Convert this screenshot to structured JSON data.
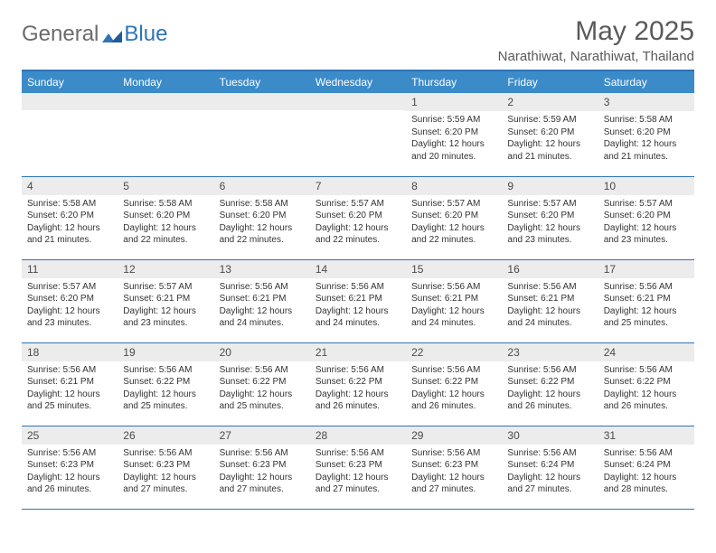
{
  "brand": {
    "part1": "General",
    "part2": "Blue"
  },
  "title": "May 2025",
  "location": "Narathiwat, Narathiwat, Thailand",
  "colors": {
    "header_bg": "#3b8bc9",
    "header_border": "#2e74b5",
    "daynum_bg": "#ececec",
    "text": "#333333",
    "title_text": "#5a5a5a"
  },
  "weekdays": [
    "Sunday",
    "Monday",
    "Tuesday",
    "Wednesday",
    "Thursday",
    "Friday",
    "Saturday"
  ],
  "weeks": [
    [
      {
        "n": "",
        "t": ""
      },
      {
        "n": "",
        "t": ""
      },
      {
        "n": "",
        "t": ""
      },
      {
        "n": "",
        "t": ""
      },
      {
        "n": "1",
        "t": "Sunrise: 5:59 AM\nSunset: 6:20 PM\nDaylight: 12 hours and 20 minutes."
      },
      {
        "n": "2",
        "t": "Sunrise: 5:59 AM\nSunset: 6:20 PM\nDaylight: 12 hours and 21 minutes."
      },
      {
        "n": "3",
        "t": "Sunrise: 5:58 AM\nSunset: 6:20 PM\nDaylight: 12 hours and 21 minutes."
      }
    ],
    [
      {
        "n": "4",
        "t": "Sunrise: 5:58 AM\nSunset: 6:20 PM\nDaylight: 12 hours and 21 minutes."
      },
      {
        "n": "5",
        "t": "Sunrise: 5:58 AM\nSunset: 6:20 PM\nDaylight: 12 hours and 22 minutes."
      },
      {
        "n": "6",
        "t": "Sunrise: 5:58 AM\nSunset: 6:20 PM\nDaylight: 12 hours and 22 minutes."
      },
      {
        "n": "7",
        "t": "Sunrise: 5:57 AM\nSunset: 6:20 PM\nDaylight: 12 hours and 22 minutes."
      },
      {
        "n": "8",
        "t": "Sunrise: 5:57 AM\nSunset: 6:20 PM\nDaylight: 12 hours and 22 minutes."
      },
      {
        "n": "9",
        "t": "Sunrise: 5:57 AM\nSunset: 6:20 PM\nDaylight: 12 hours and 23 minutes."
      },
      {
        "n": "10",
        "t": "Sunrise: 5:57 AM\nSunset: 6:20 PM\nDaylight: 12 hours and 23 minutes."
      }
    ],
    [
      {
        "n": "11",
        "t": "Sunrise: 5:57 AM\nSunset: 6:20 PM\nDaylight: 12 hours and 23 minutes."
      },
      {
        "n": "12",
        "t": "Sunrise: 5:57 AM\nSunset: 6:21 PM\nDaylight: 12 hours and 23 minutes."
      },
      {
        "n": "13",
        "t": "Sunrise: 5:56 AM\nSunset: 6:21 PM\nDaylight: 12 hours and 24 minutes."
      },
      {
        "n": "14",
        "t": "Sunrise: 5:56 AM\nSunset: 6:21 PM\nDaylight: 12 hours and 24 minutes."
      },
      {
        "n": "15",
        "t": "Sunrise: 5:56 AM\nSunset: 6:21 PM\nDaylight: 12 hours and 24 minutes."
      },
      {
        "n": "16",
        "t": "Sunrise: 5:56 AM\nSunset: 6:21 PM\nDaylight: 12 hours and 24 minutes."
      },
      {
        "n": "17",
        "t": "Sunrise: 5:56 AM\nSunset: 6:21 PM\nDaylight: 12 hours and 25 minutes."
      }
    ],
    [
      {
        "n": "18",
        "t": "Sunrise: 5:56 AM\nSunset: 6:21 PM\nDaylight: 12 hours and 25 minutes."
      },
      {
        "n": "19",
        "t": "Sunrise: 5:56 AM\nSunset: 6:22 PM\nDaylight: 12 hours and 25 minutes."
      },
      {
        "n": "20",
        "t": "Sunrise: 5:56 AM\nSunset: 6:22 PM\nDaylight: 12 hours and 25 minutes."
      },
      {
        "n": "21",
        "t": "Sunrise: 5:56 AM\nSunset: 6:22 PM\nDaylight: 12 hours and 26 minutes."
      },
      {
        "n": "22",
        "t": "Sunrise: 5:56 AM\nSunset: 6:22 PM\nDaylight: 12 hours and 26 minutes."
      },
      {
        "n": "23",
        "t": "Sunrise: 5:56 AM\nSunset: 6:22 PM\nDaylight: 12 hours and 26 minutes."
      },
      {
        "n": "24",
        "t": "Sunrise: 5:56 AM\nSunset: 6:22 PM\nDaylight: 12 hours and 26 minutes."
      }
    ],
    [
      {
        "n": "25",
        "t": "Sunrise: 5:56 AM\nSunset: 6:23 PM\nDaylight: 12 hours and 26 minutes."
      },
      {
        "n": "26",
        "t": "Sunrise: 5:56 AM\nSunset: 6:23 PM\nDaylight: 12 hours and 27 minutes."
      },
      {
        "n": "27",
        "t": "Sunrise: 5:56 AM\nSunset: 6:23 PM\nDaylight: 12 hours and 27 minutes."
      },
      {
        "n": "28",
        "t": "Sunrise: 5:56 AM\nSunset: 6:23 PM\nDaylight: 12 hours and 27 minutes."
      },
      {
        "n": "29",
        "t": "Sunrise: 5:56 AM\nSunset: 6:23 PM\nDaylight: 12 hours and 27 minutes."
      },
      {
        "n": "30",
        "t": "Sunrise: 5:56 AM\nSunset: 6:24 PM\nDaylight: 12 hours and 27 minutes."
      },
      {
        "n": "31",
        "t": "Sunrise: 5:56 AM\nSunset: 6:24 PM\nDaylight: 12 hours and 28 minutes."
      }
    ]
  ]
}
